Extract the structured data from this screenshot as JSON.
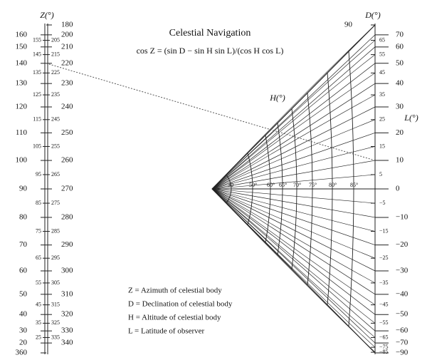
{
  "title": "Celestial Navigation",
  "formula": "cos Z = (sin D − sin H sin L)/(cos H cos L)",
  "z_scale": {
    "name": "Z(°)",
    "left_labels": [
      160,
      150,
      140,
      130,
      120,
      110,
      100,
      90,
      80,
      70,
      60,
      50,
      40,
      30,
      20,
      360
    ],
    "right_labels": [
      180,
      200,
      210,
      220,
      230,
      240,
      250,
      260,
      270,
      280,
      290,
      300,
      310,
      320,
      330,
      340
    ],
    "left_small": [
      155,
      145,
      135,
      125,
      115,
      105,
      95,
      85,
      75,
      65,
      55,
      45,
      35,
      25
    ],
    "right_small": [
      205,
      215,
      225,
      235,
      245,
      255,
      265,
      275,
      285,
      295,
      305,
      315,
      325,
      335
    ]
  },
  "l_scale": {
    "name": "L(°)",
    "labels": [
      70,
      60,
      50,
      40,
      30,
      20,
      10,
      0,
      {
        "value": -10,
        "label": "−10"
      },
      {
        "value": -20,
        "label": "−20"
      },
      {
        "value": -30,
        "label": "−30"
      },
      {
        "value": -40,
        "label": "−40"
      },
      {
        "value": -50,
        "label": "−50"
      },
      {
        "value": -60,
        "label": "−60"
      },
      {
        "value": -70,
        "label": "−70"
      },
      {
        "value": -90,
        "label": "−90"
      }
    ]
  },
  "d_scale": {
    "name": "D(°)",
    "labels": [
      90,
      65,
      55,
      45,
      35,
      25,
      15,
      5,
      {
        "value": -5,
        "label": "−5"
      },
      {
        "value": -15,
        "label": "−15"
      },
      {
        "value": -25,
        "label": "−25"
      },
      {
        "value": -35,
        "label": "−35"
      },
      {
        "value": -45,
        "label": "−45"
      },
      {
        "value": -55,
        "label": "−55"
      },
      {
        "value": -65,
        "label": "−65"
      },
      {
        "value": -75,
        "label": "−75"
      },
      {
        "value": -85,
        "label": "−85"
      }
    ]
  },
  "h_scale": {
    "name": "H(°)",
    "labels": [
      "30",
      "50°",
      "60°",
      "65°",
      "70°",
      "75°",
      "80°",
      "85°"
    ]
  },
  "example": {
    "z": 140,
    "l": 10
  },
  "legend": [
    "Z = Azimuth of celestial body",
    "D = Declination of celestial body",
    "H = Altitude of celestial body",
    "L = Latitude of observer"
  ]
}
